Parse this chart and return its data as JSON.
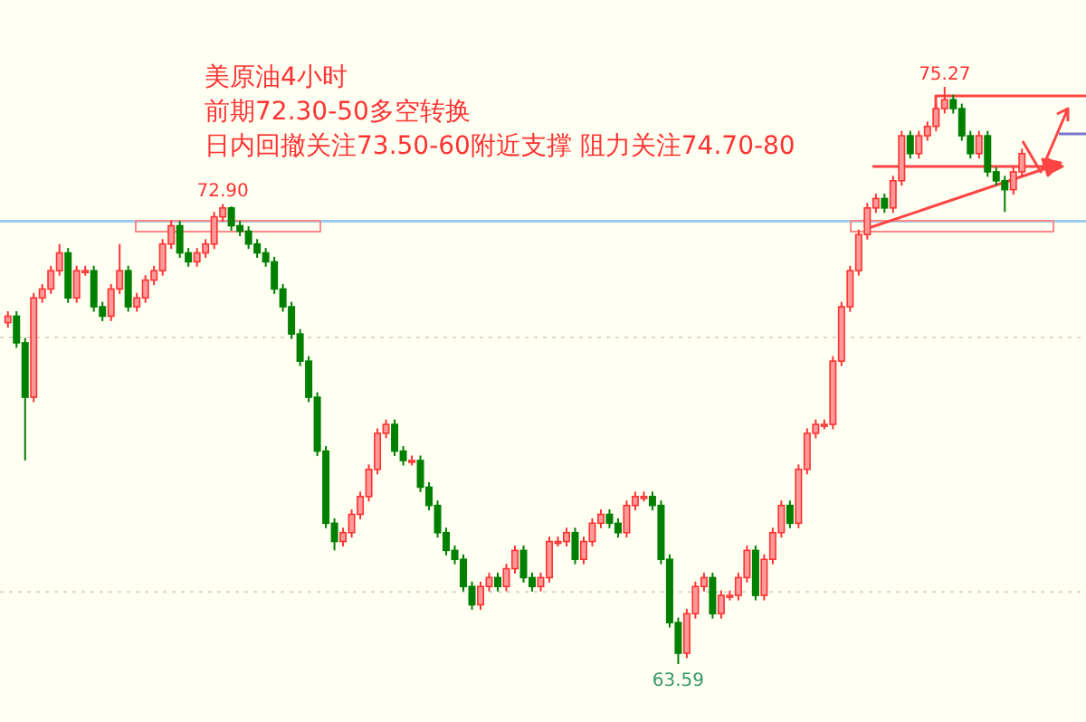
{
  "chart_data": {
    "type": "candlestick",
    "title": "美原油4小时",
    "subtitle": "前期72.30-50多空转换",
    "annotations": [
      "日内回撤关注73.50-60附近支撑   阻力关注74.70-80",
      {
        "text": "72.90",
        "y": 72.9
      },
      {
        "text": "75.27",
        "y": 75.27
      },
      {
        "text": "63.59",
        "y": 63.59
      }
    ],
    "ref_lines": [
      {
        "axis": "y",
        "value": 72.55,
        "color": "#99ccee",
        "line_style": "solid"
      },
      {
        "axis": "y",
        "value": 70.2,
        "color": "#d8d8d0",
        "line_style": "dotted"
      },
      {
        "axis": "y",
        "value": 65.05,
        "color": "#d8d8d0",
        "line_style": "dotted"
      }
    ],
    "categories": [
      null,
      null,
      null,
      null,
      null,
      null,
      null,
      null,
      null,
      null,
      null,
      null,
      null,
      null,
      null,
      null,
      null,
      null,
      null,
      null,
      null,
      null,
      null,
      null,
      null,
      null,
      null,
      null,
      null,
      null,
      null,
      null,
      null,
      null,
      null,
      null,
      null,
      null,
      null,
      null,
      null,
      null,
      null,
      null,
      null,
      null,
      null,
      null,
      null,
      null,
      null,
      null,
      null,
      null,
      null,
      null,
      null,
      null,
      null,
      null,
      null,
      null,
      null,
      null,
      null,
      null,
      null,
      null,
      null,
      null,
      null,
      null,
      null,
      null,
      null,
      null,
      null,
      null,
      null,
      null,
      null,
      null,
      null,
      null,
      null,
      null,
      null,
      null,
      null,
      null,
      null,
      null,
      null,
      null,
      null,
      null,
      null,
      null,
      null,
      null,
      null,
      null,
      null,
      null,
      null,
      null,
      null,
      null,
      null,
      null,
      null,
      null,
      null,
      null,
      null,
      null,
      null,
      null,
      null
    ],
    "ohlc": [
      [
        70.5,
        70.73,
        70.4,
        70.63
      ],
      [
        70.63,
        70.73,
        69.99,
        70.09
      ],
      [
        70.09,
        70.19,
        67.71,
        68.99
      ],
      [
        68.99,
        71.1,
        68.89,
        71.0
      ],
      [
        71.0,
        71.28,
        70.9,
        71.18
      ],
      [
        71.18,
        71.65,
        71.08,
        71.55
      ],
      [
        71.55,
        72.09,
        71.45,
        71.91
      ],
      [
        71.91,
        72.01,
        70.9,
        71.0
      ],
      [
        71.0,
        71.65,
        70.9,
        71.55
      ],
      [
        71.55,
        71.65,
        71.45,
        71.55
      ],
      [
        71.55,
        71.65,
        70.72,
        70.82
      ],
      [
        70.82,
        70.92,
        70.53,
        70.63
      ],
      [
        70.63,
        71.28,
        70.53,
        71.18
      ],
      [
        71.18,
        72.09,
        71.08,
        71.55
      ],
      [
        71.55,
        71.65,
        70.72,
        70.82
      ],
      [
        70.82,
        71.1,
        70.72,
        71.0
      ],
      [
        71.0,
        71.46,
        70.9,
        71.36
      ],
      [
        71.36,
        71.65,
        71.26,
        71.55
      ],
      [
        71.55,
        72.19,
        71.45,
        72.09
      ],
      [
        72.09,
        72.56,
        71.99,
        72.46
      ],
      [
        72.46,
        72.56,
        71.81,
        71.91
      ],
      [
        71.91,
        72.01,
        71.63,
        71.73
      ],
      [
        71.73,
        72.01,
        71.63,
        71.91
      ],
      [
        71.91,
        72.19,
        71.81,
        72.09
      ],
      [
        72.09,
        72.74,
        71.99,
        72.64
      ],
      [
        72.64,
        72.9,
        72.54,
        72.82
      ],
      [
        72.82,
        72.85,
        72.36,
        72.46
      ],
      [
        72.46,
        72.56,
        72.25,
        72.35
      ],
      [
        72.35,
        72.45,
        71.99,
        72.09
      ],
      [
        72.09,
        72.19,
        71.81,
        71.91
      ],
      [
        71.91,
        72.01,
        71.63,
        71.73
      ],
      [
        71.73,
        71.83,
        71.08,
        71.18
      ],
      [
        71.18,
        71.28,
        70.72,
        70.82
      ],
      [
        70.82,
        70.92,
        70.17,
        70.27
      ],
      [
        70.27,
        70.37,
        69.62,
        69.72
      ],
      [
        69.72,
        69.82,
        68.89,
        68.99
      ],
      [
        68.99,
        69.09,
        67.8,
        67.9
      ],
      [
        67.9,
        68.0,
        66.34,
        66.44
      ],
      [
        66.44,
        66.54,
        65.89,
        66.07
      ],
      [
        66.07,
        66.35,
        65.97,
        66.25
      ],
      [
        66.25,
        66.72,
        66.15,
        66.62
      ],
      [
        66.62,
        67.08,
        66.52,
        66.98
      ],
      [
        66.98,
        67.63,
        66.88,
        67.53
      ],
      [
        67.53,
        68.36,
        67.43,
        68.26
      ],
      [
        68.26,
        68.54,
        68.16,
        68.44
      ],
      [
        68.44,
        68.54,
        67.8,
        67.9
      ],
      [
        67.9,
        68.0,
        67.61,
        67.71
      ],
      [
        67.71,
        67.81,
        67.61,
        67.71
      ],
      [
        67.71,
        67.81,
        67.07,
        67.17
      ],
      [
        67.17,
        67.27,
        66.7,
        66.8
      ],
      [
        66.8,
        66.9,
        66.15,
        66.25
      ],
      [
        66.25,
        66.35,
        65.79,
        65.89
      ],
      [
        65.89,
        65.99,
        65.61,
        65.71
      ],
      [
        65.71,
        65.81,
        65.06,
        65.16
      ],
      [
        65.16,
        65.26,
        64.69,
        64.79
      ],
      [
        64.79,
        65.26,
        64.69,
        65.16
      ],
      [
        65.16,
        65.44,
        65.06,
        65.34
      ],
      [
        65.34,
        65.44,
        65.06,
        65.16
      ],
      [
        65.16,
        65.62,
        65.06,
        65.52
      ],
      [
        65.52,
        65.99,
        65.42,
        65.89
      ],
      [
        65.89,
        65.99,
        65.24,
        65.34
      ],
      [
        65.34,
        65.44,
        65.06,
        65.16
      ],
      [
        65.16,
        65.44,
        65.06,
        65.34
      ],
      [
        65.34,
        66.17,
        65.24,
        66.07
      ],
      [
        66.07,
        66.17,
        65.97,
        66.07
      ],
      [
        66.07,
        66.35,
        65.97,
        66.25
      ],
      [
        66.25,
        66.35,
        65.61,
        65.71
      ],
      [
        65.71,
        66.17,
        65.61,
        66.07
      ],
      [
        66.07,
        66.54,
        65.97,
        66.44
      ],
      [
        66.44,
        66.72,
        66.34,
        66.62
      ],
      [
        66.62,
        66.72,
        66.34,
        66.44
      ],
      [
        66.44,
        66.54,
        66.15,
        66.25
      ],
      [
        66.25,
        66.9,
        66.15,
        66.8
      ],
      [
        66.8,
        67.08,
        66.7,
        66.98
      ],
      [
        66.98,
        67.08,
        66.88,
        66.98
      ],
      [
        66.98,
        67.08,
        66.7,
        66.8
      ],
      [
        66.8,
        66.9,
        65.61,
        65.71
      ],
      [
        65.71,
        65.81,
        64.33,
        64.43
      ],
      [
        64.43,
        64.53,
        63.59,
        63.81
      ],
      [
        63.81,
        64.71,
        63.71,
        64.61
      ],
      [
        64.61,
        65.26,
        64.51,
        65.16
      ],
      [
        65.16,
        65.44,
        65.06,
        65.34
      ],
      [
        65.34,
        65.44,
        64.51,
        64.61
      ],
      [
        64.61,
        65.08,
        64.51,
        64.98
      ],
      [
        64.98,
        65.08,
        64.88,
        64.98
      ],
      [
        64.98,
        65.44,
        64.88,
        65.34
      ],
      [
        65.34,
        65.99,
        65.24,
        65.89
      ],
      [
        65.89,
        65.99,
        64.88,
        64.98
      ],
      [
        64.98,
        65.81,
        64.88,
        65.71
      ],
      [
        65.71,
        66.35,
        65.61,
        66.25
      ],
      [
        66.25,
        66.9,
        66.15,
        66.8
      ],
      [
        66.8,
        66.9,
        66.34,
        66.44
      ],
      [
        66.44,
        67.63,
        66.34,
        67.53
      ],
      [
        67.53,
        68.36,
        67.43,
        68.26
      ],
      [
        68.26,
        68.54,
        68.16,
        68.44
      ],
      [
        68.44,
        68.54,
        68.34,
        68.44
      ],
      [
        68.44,
        69.82,
        68.34,
        69.72
      ],
      [
        69.72,
        70.92,
        69.62,
        70.82
      ],
      [
        70.82,
        71.65,
        70.72,
        71.55
      ],
      [
        71.55,
        72.38,
        71.45,
        72.28
      ],
      [
        72.28,
        72.92,
        72.18,
        72.82
      ],
      [
        72.82,
        73.11,
        72.72,
        73.01
      ],
      [
        73.01,
        73.11,
        72.72,
        72.82
      ],
      [
        72.82,
        73.47,
        72.72,
        73.37
      ],
      [
        73.37,
        74.38,
        73.27,
        74.28
      ],
      [
        74.28,
        74.38,
        73.82,
        73.92
      ],
      [
        73.92,
        74.38,
        73.82,
        74.28
      ],
      [
        74.28,
        74.57,
        74.18,
        74.47
      ],
      [
        74.47,
        74.93,
        74.37,
        74.83
      ],
      [
        74.83,
        75.27,
        74.73,
        75.01
      ],
      [
        75.01,
        75.11,
        74.73,
        74.83
      ],
      [
        74.83,
        74.93,
        74.18,
        74.28
      ],
      [
        74.28,
        74.38,
        73.82,
        73.92
      ],
      [
        73.92,
        74.38,
        73.82,
        74.28
      ],
      [
        74.28,
        74.38,
        73.45,
        73.55
      ],
      [
        73.55,
        73.65,
        73.27,
        73.37
      ],
      [
        73.37,
        73.47,
        72.74,
        73.19
      ],
      [
        73.19,
        73.65,
        73.09,
        73.55
      ],
      [
        73.55,
        74.02,
        73.45,
        73.92
      ]
    ]
  }
}
